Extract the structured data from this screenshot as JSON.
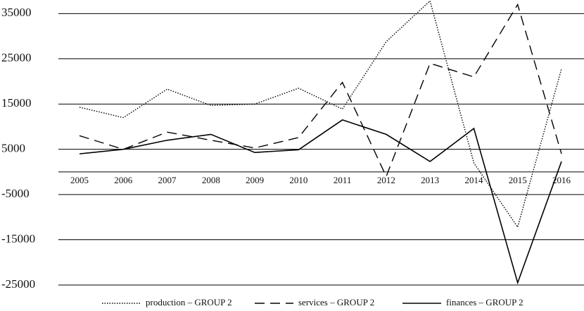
{
  "chart_data": {
    "type": "line",
    "categories": [
      "2005",
      "2006",
      "2007",
      "2008",
      "2009",
      "2010",
      "2011",
      "2012",
      "2013",
      "2014",
      "2015",
      "2016"
    ],
    "series": [
      {
        "name": "production – GROUP 2",
        "color": "#000000",
        "style": "dotted",
        "values": [
          14300,
          12000,
          18300,
          14700,
          15000,
          18500,
          13900,
          28800,
          37800,
          2000,
          -12200,
          22800
        ]
      },
      {
        "name": "services – GROUP 2",
        "color": "#000000",
        "style": "dashed",
        "values": [
          8000,
          5000,
          8800,
          7000,
          5300,
          7600,
          19800,
          -1000,
          24000,
          21000,
          37000,
          4000
        ]
      },
      {
        "name": "finances – GROUP 2",
        "color": "#000000",
        "style": "solid",
        "values": [
          4000,
          5000,
          7000,
          8300,
          4300,
          4900,
          11500,
          8300,
          2300,
          9600,
          -24500,
          2300
        ]
      }
    ],
    "ylim": [
      -25000,
      38000
    ],
    "yticks": [
      35000,
      25000,
      15000,
      5000,
      -5000,
      -15000,
      -25000
    ],
    "grid": true,
    "legend": "bottom"
  }
}
